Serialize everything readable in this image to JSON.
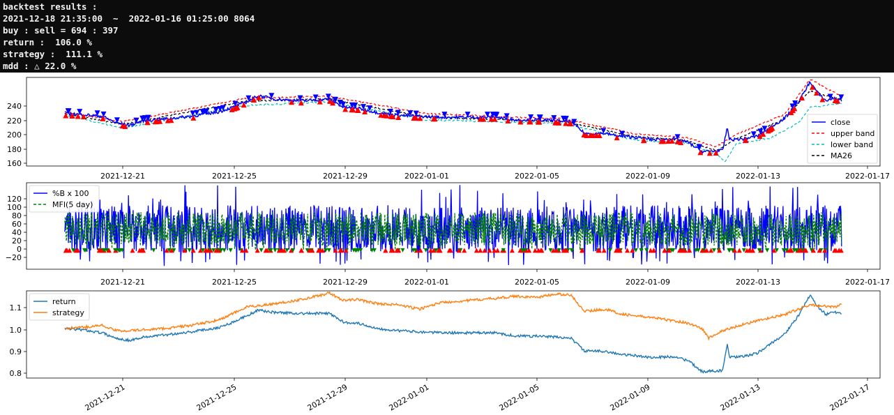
{
  "console": {
    "lines": [
      "backtest results :",
      "2021-12-18 21:35:00  ~  2022-01-16 01:25:00 8064",
      "buy : sell = 694 : 397",
      "return :  106.0 %",
      "strategy :  111.1 %",
      "mdd : △ 22.0 %"
    ]
  },
  "colors": {
    "close": "#0000ff",
    "upper_band": "#ff0000",
    "lower_band": "#00bfbf",
    "ma26": "#000000",
    "pctb": "#0000ff",
    "mfi": "#008000",
    "return": "#1f77b4",
    "strategy": "#ff7f0e",
    "buy_marker": "#ff0000",
    "sell_marker": "#0000ff"
  },
  "date_ticks": [
    "2021-12-21",
    "2021-12-25",
    "2021-12-29",
    "2022-01-01",
    "2022-01-05",
    "2022-01-09",
    "2022-01-13",
    "2022-01-17"
  ],
  "chart_data": [
    {
      "type": "line",
      "x_range": [
        "2021-12-18 21:35:00",
        "2022-01-16 01:25:00"
      ],
      "xlim": [
        "2021-12-17 12:00",
        "2022-01-17 12:00"
      ],
      "ylim": [
        157,
        255
      ],
      "yticks": [
        "160",
        "180",
        "200",
        "220",
        "240"
      ],
      "legend_position": "lower-right",
      "series": [
        {
          "name": "close",
          "color_key": "close",
          "style": "solid",
          "points": [
            [
              "2021-12-18 21:35",
              215
            ],
            [
              "2021-12-19 12:00",
              214
            ],
            [
              "2021-12-20 06:00",
              212
            ],
            [
              "2021-12-20 18:00",
              205
            ],
            [
              "2021-12-21 06:00",
              202
            ],
            [
              "2021-12-21 18:00",
              207
            ],
            [
              "2021-12-22 12:00",
              209
            ],
            [
              "2021-12-23 12:00",
              212
            ],
            [
              "2021-12-24 12:00",
              217
            ],
            [
              "2021-12-25 00:00",
              222
            ],
            [
              "2021-12-25 12:00",
              228
            ],
            [
              "2021-12-25 22:00",
              235
            ],
            [
              "2021-12-26 12:00",
              231
            ],
            [
              "2021-12-27 12:00",
              229
            ],
            [
              "2021-12-28 12:00",
              231
            ],
            [
              "2021-12-29 00:00",
              222
            ],
            [
              "2021-12-29 12:00",
              221
            ],
            [
              "2021-12-30 06:00",
              216
            ],
            [
              "2021-12-31 00:00",
              213
            ],
            [
              "2021-12-31 18:00",
              212
            ],
            [
              "2022-01-01 12:00",
              211
            ],
            [
              "2022-01-02 12:00",
              211
            ],
            [
              "2022-01-03 12:00",
              211
            ],
            [
              "2022-01-04 06:00",
              208
            ],
            [
              "2022-01-05 00:00",
              208
            ],
            [
              "2022-01-05 18:00",
              207
            ],
            [
              "2022-01-06 06:00",
              206
            ],
            [
              "2022-01-06 18:00",
              193
            ],
            [
              "2022-01-07 12:00",
              193
            ],
            [
              "2022-01-08 00:00",
              190
            ],
            [
              "2022-01-08 12:00",
              189
            ],
            [
              "2022-01-09 06:00",
              186
            ],
            [
              "2022-01-10 00:00",
              187
            ],
            [
              "2022-01-10 12:00",
              183
            ],
            [
              "2022-01-11 00:00",
              173
            ],
            [
              "2022-01-11 18:00",
              174
            ],
            [
              "2022-01-11 22:00",
              200
            ],
            [
              "2022-01-12 00:00",
              186
            ],
            [
              "2022-01-12 12:00",
              187
            ],
            [
              "2022-01-13 00:00",
              190
            ],
            [
              "2022-01-13 12:00",
              200
            ],
            [
              "2022-01-14 00:00",
              210
            ],
            [
              "2022-01-14 12:00",
              228
            ],
            [
              "2022-01-14 22:00",
              250
            ],
            [
              "2022-01-15 06:00",
              236
            ],
            [
              "2022-01-15 12:00",
              229
            ],
            [
              "2022-01-15 18:00",
              232
            ],
            [
              "2022-01-16 01:25",
              230
            ]
          ]
        },
        {
          "name": "upper band",
          "color_key": "upper_band",
          "style": "dashed",
          "points": [
            [
              "2021-12-18 21:35",
              217
            ],
            [
              "2021-12-21 00:00",
              206
            ],
            [
              "2021-12-25 12:00",
              232
            ],
            [
              "2021-12-28 12:00",
              234
            ],
            [
              "2022-01-01 00:00",
              215
            ],
            [
              "2022-01-06 00:00",
              209
            ],
            [
              "2022-01-08 12:00",
              193
            ],
            [
              "2022-01-10 12:00",
              188
            ],
            [
              "2022-01-11 12:00",
              178
            ],
            [
              "2022-01-12 06:00",
              192
            ],
            [
              "2022-01-14 00:00",
              214
            ],
            [
              "2022-01-14 22:00",
              253
            ],
            [
              "2022-01-16 01:25",
              234
            ]
          ]
        },
        {
          "name": "lower band",
          "color_key": "lower_band",
          "style": "dashed",
          "points": [
            [
              "2021-12-18 21:35",
              213
            ],
            [
              "2021-12-21 00:00",
              199
            ],
            [
              "2021-12-25 12:00",
              224
            ],
            [
              "2021-12-28 12:00",
              228
            ],
            [
              "2022-01-01 00:00",
              208
            ],
            [
              "2022-01-06 00:00",
              204
            ],
            [
              "2022-01-08 12:00",
              186
            ],
            [
              "2022-01-10 12:00",
              182
            ],
            [
              "2022-01-11 12:00",
              170
            ],
            [
              "2022-01-11 20:00",
              162
            ],
            [
              "2022-01-12 06:00",
              182
            ],
            [
              "2022-01-13 12:00",
              188
            ],
            [
              "2022-01-14 12:00",
              205
            ],
            [
              "2022-01-14 22:00",
              222
            ],
            [
              "2022-01-16 01:25",
              226
            ]
          ]
        },
        {
          "name": "MA26",
          "color_key": "ma26",
          "style": "dashed",
          "points": [
            [
              "2021-12-18 21:35",
              215
            ],
            [
              "2021-12-21 00:00",
              203
            ],
            [
              "2021-12-25 12:00",
              229
            ],
            [
              "2021-12-28 12:00",
              231
            ],
            [
              "2022-01-01 00:00",
              211
            ],
            [
              "2022-01-06 00:00",
              206
            ],
            [
              "2022-01-08 12:00",
              190
            ],
            [
              "2022-01-10 12:00",
              185
            ],
            [
              "2022-01-11 12:00",
              174
            ],
            [
              "2022-01-12 06:00",
              187
            ],
            [
              "2022-01-14 00:00",
              209
            ],
            [
              "2022-01-14 22:00",
              240
            ],
            [
              "2022-01-16 01:25",
              230
            ]
          ]
        }
      ]
    },
    {
      "type": "line",
      "xlim": [
        "2021-12-17 12:00",
        "2022-01-17 12:00"
      ],
      "ylim": [
        -42,
        150
      ],
      "yticks": [
        "−20",
        "0",
        "20",
        "40",
        "60",
        "80",
        "100",
        "120"
      ],
      "legend_position": "upper-left",
      "series": [
        {
          "name": "%B x 100",
          "color_key": "pctb",
          "style": "solid",
          "range": [
            -35,
            145
          ],
          "typical": [
            -5,
            100
          ]
        },
        {
          "name": "MFI(5 day)",
          "color_key": "mfi",
          "style": "dashed",
          "range": [
            0,
            100
          ],
          "typical": [
            10,
            85
          ]
        }
      ],
      "markers_at_y": 0
    },
    {
      "type": "line",
      "xlim": [
        "2021-12-17 12:00",
        "2022-01-17 12:00"
      ],
      "ylim": [
        0.77,
        1.175
      ],
      "yticks": [
        "0.8",
        "0.9",
        "1.0",
        "1.1"
      ],
      "legend_position": "upper-left",
      "series": [
        {
          "name": "return",
          "color_key": "return",
          "style": "solid",
          "points": [
            [
              "2021-12-18 21:35",
              1.0
            ],
            [
              "2021-12-19 12:00",
              0.995
            ],
            [
              "2021-12-20 06:00",
              0.98
            ],
            [
              "2021-12-20 18:00",
              0.955
            ],
            [
              "2021-12-21 06:00",
              0.945
            ],
            [
              "2021-12-21 18:00",
              0.96
            ],
            [
              "2021-12-22 12:00",
              0.97
            ],
            [
              "2021-12-23 12:00",
              0.985
            ],
            [
              "2021-12-24 12:00",
              1.005
            ],
            [
              "2021-12-25 00:00",
              1.03
            ],
            [
              "2021-12-25 12:00",
              1.06
            ],
            [
              "2021-12-25 22:00",
              1.085
            ],
            [
              "2021-12-26 12:00",
              1.075
            ],
            [
              "2021-12-27 12:00",
              1.07
            ],
            [
              "2021-12-28 12:00",
              1.07
            ],
            [
              "2021-12-29 00:00",
              1.03
            ],
            [
              "2021-12-29 12:00",
              1.025
            ],
            [
              "2021-12-30 06:00",
              1.0
            ],
            [
              "2021-12-31 00:00",
              0.99
            ],
            [
              "2021-12-31 18:00",
              0.985
            ],
            [
              "2022-01-01 12:00",
              0.98
            ],
            [
              "2022-01-02 12:00",
              0.98
            ],
            [
              "2022-01-03 12:00",
              0.98
            ],
            [
              "2022-01-04 06:00",
              0.965
            ],
            [
              "2022-01-05 00:00",
              0.965
            ],
            [
              "2022-01-05 18:00",
              0.96
            ],
            [
              "2022-01-06 06:00",
              0.955
            ],
            [
              "2022-01-06 18:00",
              0.895
            ],
            [
              "2022-01-07 12:00",
              0.895
            ],
            [
              "2022-01-08 00:00",
              0.88
            ],
            [
              "2022-01-08 12:00",
              0.875
            ],
            [
              "2022-01-09 06:00",
              0.865
            ],
            [
              "2022-01-10 00:00",
              0.87
            ],
            [
              "2022-01-10 12:00",
              0.85
            ],
            [
              "2022-01-11 00:00",
              0.8
            ],
            [
              "2022-01-11 18:00",
              0.805
            ],
            [
              "2022-01-11 22:00",
              0.93
            ],
            [
              "2022-01-12 00:00",
              0.865
            ],
            [
              "2022-01-12 12:00",
              0.87
            ],
            [
              "2022-01-13 00:00",
              0.885
            ],
            [
              "2022-01-13 12:00",
              0.93
            ],
            [
              "2022-01-14 00:00",
              0.975
            ],
            [
              "2022-01-14 12:00",
              1.06
            ],
            [
              "2022-01-14 22:00",
              1.155
            ],
            [
              "2022-01-15 06:00",
              1.095
            ],
            [
              "2022-01-15 12:00",
              1.065
            ],
            [
              "2022-01-15 18:00",
              1.08
            ],
            [
              "2022-01-16 01:25",
              1.065
            ]
          ]
        },
        {
          "name": "strategy",
          "color_key": "strategy",
          "style": "solid",
          "points": [
            [
              "2021-12-18 21:35",
              1.0
            ],
            [
              "2021-12-19 12:00",
              1.005
            ],
            [
              "2021-12-20 06:00",
              1.015
            ],
            [
              "2021-12-20 18:00",
              0.99
            ],
            [
              "2021-12-21 06:00",
              0.99
            ],
            [
              "2021-12-22 12:00",
              1.0
            ],
            [
              "2021-12-23 12:00",
              1.015
            ],
            [
              "2021-12-24 12:00",
              1.04
            ],
            [
              "2021-12-25 00:00",
              1.07
            ],
            [
              "2021-12-25 12:00",
              1.1
            ],
            [
              "2021-12-26 12:00",
              1.115
            ],
            [
              "2021-12-27 12:00",
              1.135
            ],
            [
              "2021-12-28 00:00",
              1.15
            ],
            [
              "2021-12-28 12:00",
              1.165
            ],
            [
              "2021-12-29 00:00",
              1.13
            ],
            [
              "2021-12-29 12:00",
              1.135
            ],
            [
              "2021-12-30 06:00",
              1.115
            ],
            [
              "2021-12-31 00:00",
              1.11
            ],
            [
              "2021-12-31 18:00",
              1.09
            ],
            [
              "2022-01-01 12:00",
              1.12
            ],
            [
              "2022-01-02 12:00",
              1.13
            ],
            [
              "2022-01-03 12:00",
              1.14
            ],
            [
              "2022-01-04 06:00",
              1.15
            ],
            [
              "2022-01-05 00:00",
              1.145
            ],
            [
              "2022-01-05 18:00",
              1.16
            ],
            [
              "2022-01-06 06:00",
              1.155
            ],
            [
              "2022-01-06 18:00",
              1.08
            ],
            [
              "2022-01-07 12:00",
              1.09
            ],
            [
              "2022-01-08 00:00",
              1.07
            ],
            [
              "2022-01-08 12:00",
              1.06
            ],
            [
              "2022-01-09 06:00",
              1.05
            ],
            [
              "2022-01-10 00:00",
              1.035
            ],
            [
              "2022-01-10 12:00",
              1.025
            ],
            [
              "2022-01-11 00:00",
              1.0
            ],
            [
              "2022-01-11 06:00",
              0.955
            ],
            [
              "2022-01-11 18:00",
              0.99
            ],
            [
              "2022-01-12 12:00",
              1.02
            ],
            [
              "2022-01-13 00:00",
              1.035
            ],
            [
              "2022-01-13 12:00",
              1.05
            ],
            [
              "2022-01-14 00:00",
              1.065
            ],
            [
              "2022-01-14 12:00",
              1.09
            ],
            [
              "2022-01-14 22:00",
              1.11
            ],
            [
              "2022-01-15 06:00",
              1.105
            ],
            [
              "2022-01-15 18:00",
              1.1
            ],
            [
              "2022-01-16 01:25",
              1.11
            ]
          ]
        }
      ]
    }
  ]
}
